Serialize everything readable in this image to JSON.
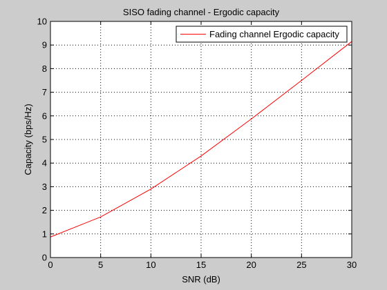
{
  "chart_data": {
    "type": "line",
    "title": "SISO fading channel - Ergodic capacity",
    "xlabel": "SNR (dB)",
    "ylabel": "Capacity (bps/Hz)",
    "xlim": [
      0,
      30
    ],
    "ylim": [
      0,
      10
    ],
    "x_ticks": [
      0,
      5,
      10,
      15,
      20,
      25,
      30
    ],
    "y_ticks": [
      0,
      1,
      2,
      3,
      4,
      5,
      6,
      7,
      8,
      9,
      10
    ],
    "grid": true,
    "grid_style": "dotted",
    "legend_position": "top-right",
    "series": [
      {
        "name": "Fading channel Ergodic capacity",
        "color": "#ff0000",
        "x": [
          0,
          5,
          10,
          15,
          20,
          25,
          30
        ],
        "y": [
          0.87,
          1.72,
          2.9,
          4.3,
          5.87,
          7.5,
          9.15
        ]
      }
    ]
  }
}
